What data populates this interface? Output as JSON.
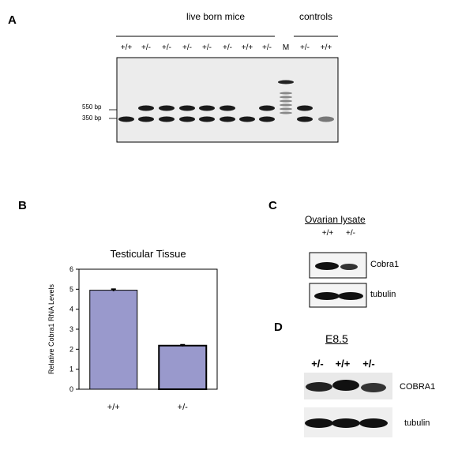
{
  "panelA": {
    "letter": "A",
    "header_live": "live born mice",
    "header_controls": "controls",
    "lanes": [
      "+/+",
      "+/-",
      "+/-",
      "+/-",
      "+/-",
      "+/-",
      "+/+",
      "+/-",
      "M",
      "+/-",
      "+/+"
    ],
    "size_550": "550 bp",
    "size_350": "350 bp"
  },
  "panelB": {
    "letter": "B",
    "chart_data": {
      "type": "bar",
      "title": "Testicular Tissue",
      "ylabel": "Relative Cobra1 RNA Levels",
      "xlabel": "",
      "categories": [
        "+/+",
        "+/-"
      ],
      "values": [
        4.95,
        2.18
      ],
      "errors": [
        0.05,
        0.04
      ],
      "ylim": [
        0,
        6
      ],
      "yticks": [
        "0",
        "1",
        "2",
        "3",
        "4",
        "5",
        "6"
      ],
      "bar_color": "#9999cc",
      "grid": false,
      "legend": "none"
    }
  },
  "panelC": {
    "letter": "C",
    "title": "Ovarian lysate",
    "lanes": [
      "+/+",
      "+/-"
    ],
    "bands": [
      "Cobra1",
      "tubulin"
    ]
  },
  "panelD": {
    "letter": "D",
    "title": "E8.5",
    "lanes": [
      "+/-",
      "+/+",
      "+/-"
    ],
    "bands": [
      "COBRA1",
      "tubulin"
    ]
  }
}
